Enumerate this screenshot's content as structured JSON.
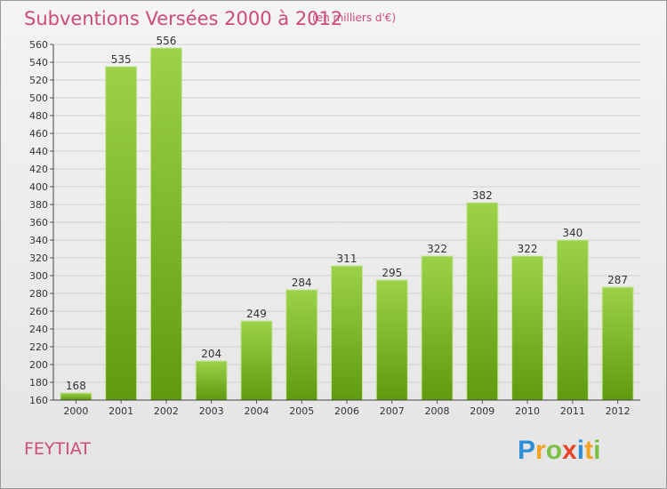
{
  "title": "Subventions Versées 2000 à 2012",
  "subtitle": "(en milliers d'€)",
  "commune": "FEYTIAT",
  "logo": "Proxiti",
  "colors": {
    "accent": "#d04a78",
    "bar_top": "#9cd24a",
    "bar_bottom": "#5f9a10"
  },
  "chart_data": {
    "type": "bar",
    "categories": [
      "2000",
      "2001",
      "2002",
      "2003",
      "2004",
      "2005",
      "2006",
      "2007",
      "2008",
      "2009",
      "2010",
      "2011",
      "2012"
    ],
    "values": [
      168,
      535,
      556,
      204,
      249,
      284,
      311,
      295,
      322,
      382,
      322,
      340,
      287
    ],
    "ylim": [
      160,
      560
    ],
    "yticks": [
      160,
      180,
      200,
      220,
      240,
      260,
      280,
      300,
      320,
      340,
      360,
      380,
      400,
      420,
      440,
      460,
      480,
      500,
      520,
      540,
      560
    ],
    "grid": true
  }
}
